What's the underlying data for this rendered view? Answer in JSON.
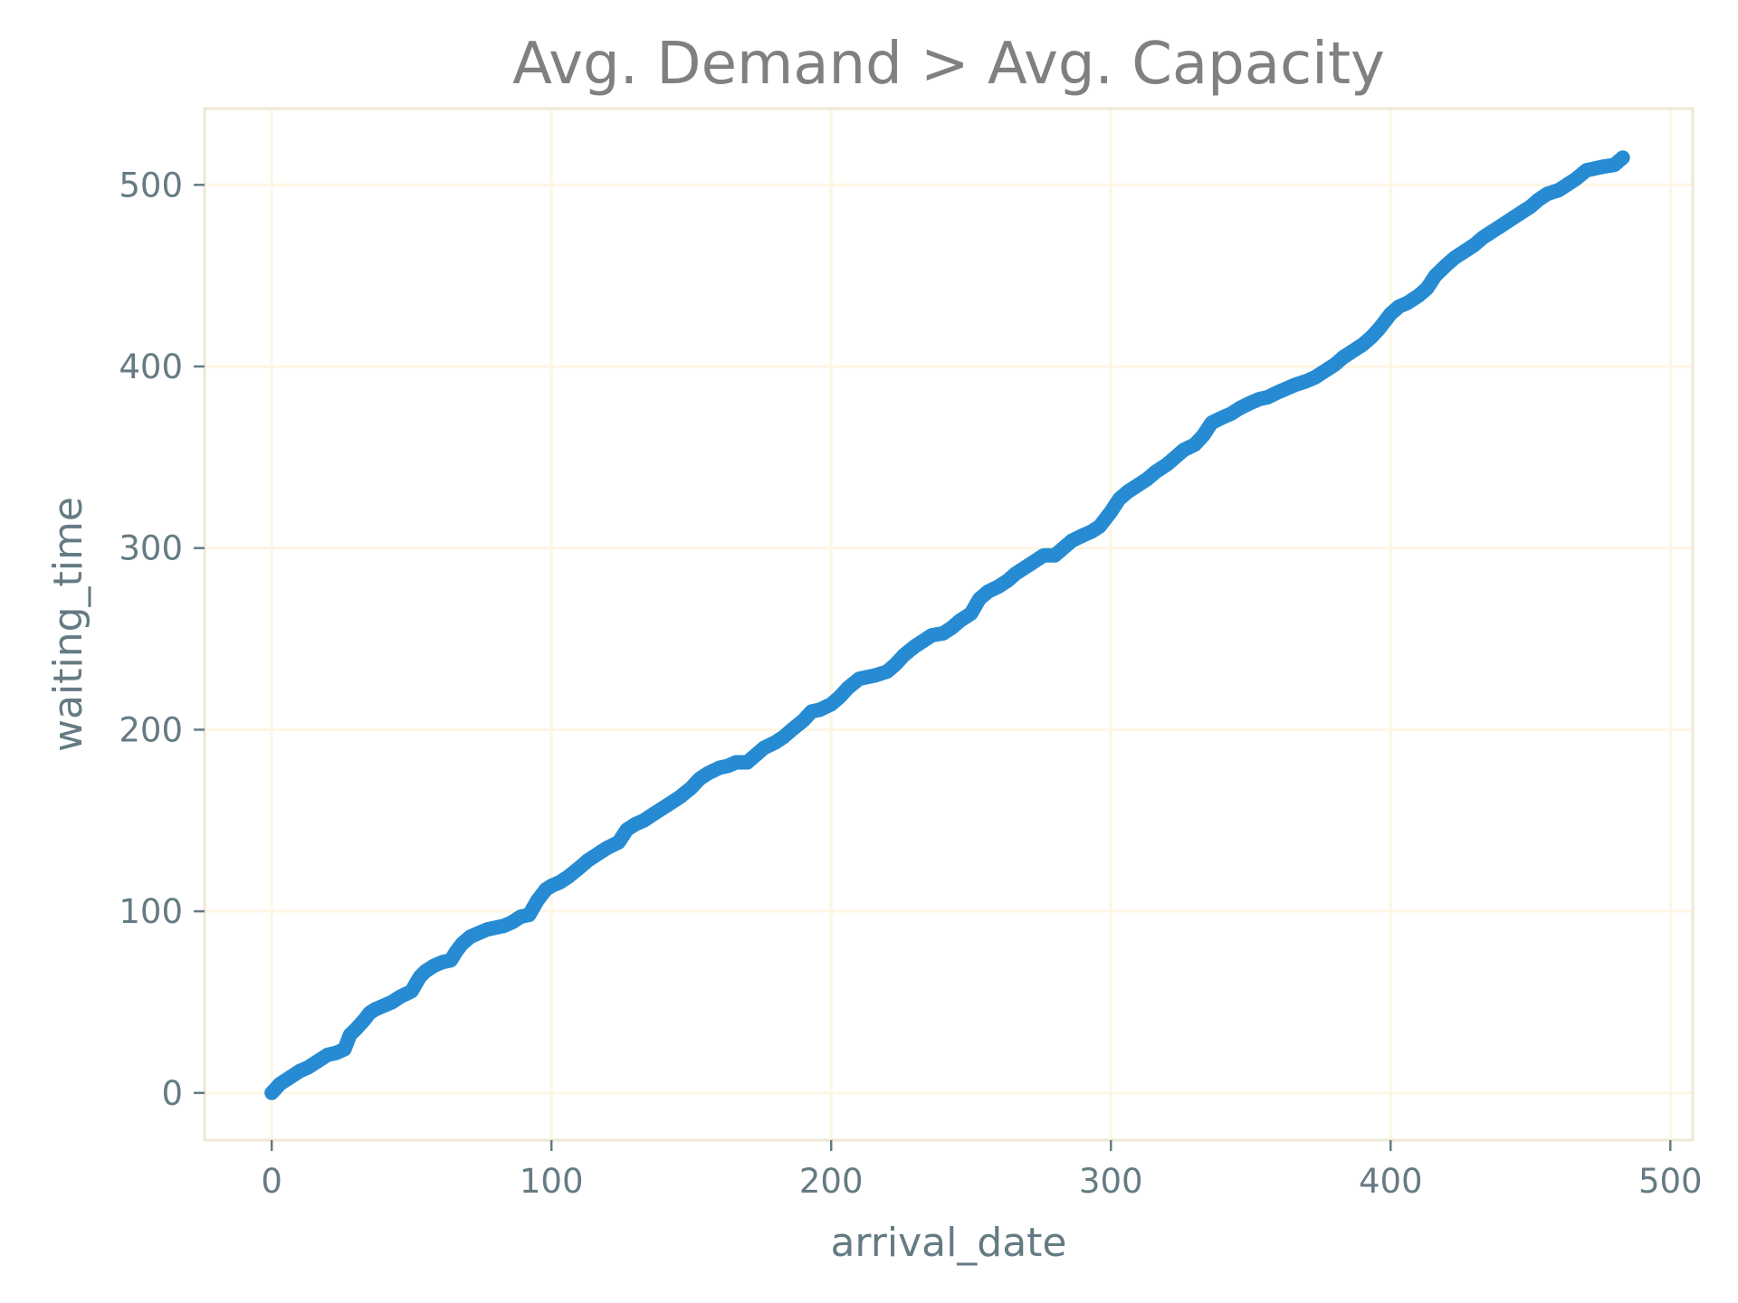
{
  "chart_data": {
    "type": "line",
    "title": "Avg. Demand > Avg. Capacity",
    "xlabel": "arrival_date",
    "ylabel": "waiting_time",
    "xlim": [
      -24,
      508
    ],
    "ylim": [
      -26,
      542
    ],
    "xticks": [
      0,
      100,
      200,
      300,
      400,
      500
    ],
    "yticks": [
      0,
      100,
      200,
      300,
      400,
      500
    ],
    "xtick_labels": [
      "0",
      "100",
      "200",
      "300",
      "400",
      "500"
    ],
    "ytick_labels": [
      "0",
      "100",
      "200",
      "300",
      "400",
      "500"
    ],
    "grid": true,
    "line_color": "#268bd2",
    "grid_color": "#fdf6e3",
    "text_color": "#657b83",
    "title_color": "#808080",
    "series": [
      {
        "x": [
          0,
          3,
          6,
          10,
          13,
          16,
          20,
          23,
          26,
          28,
          30,
          33,
          35,
          37,
          40,
          43,
          46,
          50,
          53,
          55,
          58,
          61,
          64,
          66,
          68,
          71,
          74,
          77,
          80,
          83,
          86,
          89,
          92,
          95,
          98,
          100,
          103,
          106,
          110,
          113,
          116,
          120,
          124,
          127,
          130,
          133,
          136,
          140,
          143,
          146,
          150,
          153,
          156,
          160,
          163,
          166,
          170,
          173,
          176,
          180,
          183,
          186,
          190,
          193,
          196,
          200,
          203,
          206,
          210,
          213,
          216,
          220,
          223,
          226,
          230,
          233,
          236,
          240,
          243,
          246,
          250,
          253,
          256,
          260,
          263,
          266,
          270,
          273,
          276,
          280,
          283,
          286,
          290,
          293,
          296,
          300,
          303,
          306,
          310,
          313,
          316,
          320,
          323,
          326,
          330,
          333,
          336,
          340,
          343,
          346,
          350,
          353,
          356,
          360,
          363,
          366,
          370,
          373,
          376,
          380,
          383,
          386,
          390,
          393,
          396,
          400,
          403,
          406,
          410,
          413,
          416,
          420,
          423,
          426,
          430,
          433,
          436,
          440,
          443,
          446,
          450,
          453,
          456,
          460,
          463,
          466,
          470,
          473,
          476,
          480,
          483
        ],
        "y": [
          0,
          5,
          8,
          12,
          14,
          17,
          21,
          22,
          24,
          32,
          35,
          40,
          44,
          46,
          48,
          50,
          53,
          56,
          64,
          67,
          70,
          72,
          73,
          78,
          82,
          86,
          88,
          90,
          91,
          92,
          94,
          97,
          98,
          106,
          112,
          114,
          116,
          119,
          124,
          128,
          131,
          135,
          138,
          145,
          148,
          150,
          153,
          157,
          160,
          163,
          168,
          173,
          176,
          179,
          180,
          182,
          182,
          186,
          190,
          193,
          196,
          200,
          205,
          210,
          211,
          214,
          218,
          223,
          228,
          229,
          230,
          232,
          236,
          241,
          246,
          249,
          252,
          253,
          256,
          260,
          264,
          272,
          276,
          279,
          282,
          286,
          290,
          293,
          296,
          296,
          300,
          304,
          307,
          309,
          312,
          320,
          327,
          331,
          335,
          338,
          342,
          346,
          350,
          354,
          357,
          362,
          369,
          372,
          374,
          377,
          380,
          382,
          383,
          386,
          388,
          390,
          392,
          394,
          397,
          401,
          405,
          408,
          412,
          416,
          421,
          429,
          433,
          435,
          439,
          443,
          450,
          456,
          460,
          463,
          467,
          471,
          474,
          478,
          481,
          484,
          488,
          492,
          495,
          497,
          500,
          503,
          508,
          509,
          510,
          511,
          515
        ]
      }
    ]
  }
}
